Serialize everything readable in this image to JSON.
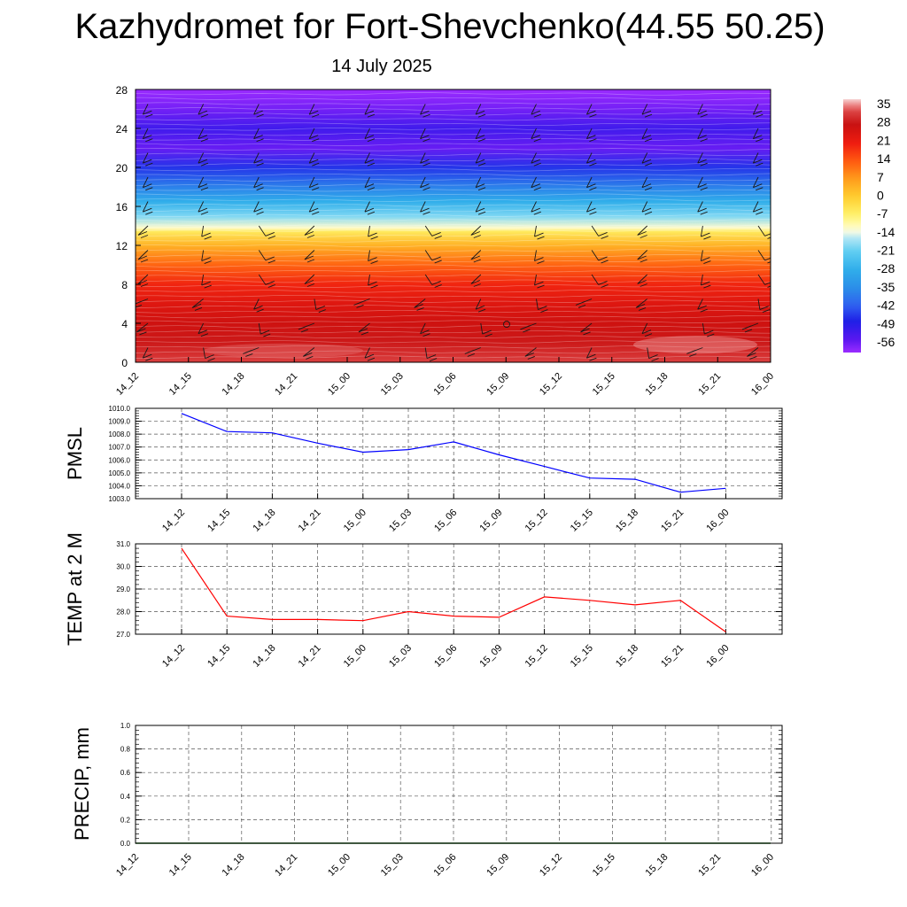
{
  "title": "Kazhydromet for Fort-Shevchenko(44.55 50.25)",
  "subtitle": "14 July 2025",
  "chart_data": [
    {
      "type": "heatmap",
      "name": "temperature-wind-profile",
      "x_ticks": [
        "14_12",
        "14_15",
        "14_18",
        "14_21",
        "15_00",
        "15_03",
        "15_06",
        "15_09",
        "15_12",
        "15_15",
        "15_18",
        "15_21",
        "16_00"
      ],
      "y_ticks": [
        0,
        4,
        8,
        12,
        16,
        20,
        24,
        28
      ],
      "ylim": [
        0,
        28
      ],
      "colorbar": {
        "labels": [
          35,
          28,
          21,
          14,
          7,
          0,
          -7,
          -14,
          -21,
          -28,
          -35,
          -42,
          -49,
          -56
        ],
        "range": [
          -60,
          38
        ]
      },
      "profile": [
        {
          "h": 0,
          "v": 33
        },
        {
          "h": 1,
          "v": 31
        },
        {
          "h": 2,
          "v": 29
        },
        {
          "h": 4,
          "v": 27
        },
        {
          "h": 6,
          "v": 24
        },
        {
          "h": 8,
          "v": 20
        },
        {
          "h": 10,
          "v": 13
        },
        {
          "h": 12,
          "v": 4
        },
        {
          "h": 13.4,
          "v": -5
        },
        {
          "h": 13.8,
          "v": -12
        },
        {
          "h": 15,
          "v": -19
        },
        {
          "h": 16.5,
          "v": -28
        },
        {
          "h": 18,
          "v": -37
        },
        {
          "h": 20,
          "v": -46
        },
        {
          "h": 22,
          "v": -56
        },
        {
          "h": 24,
          "v": -52
        },
        {
          "h": 26,
          "v": -57
        },
        {
          "h": 28,
          "v": -60
        }
      ],
      "grid": false
    },
    {
      "type": "line",
      "name": "pmsl",
      "ylabel": "PMSL",
      "x": [
        "14_12",
        "14_15",
        "14_18",
        "14_21",
        "15_00",
        "15_03",
        "15_06",
        "15_09",
        "15_12",
        "15_15",
        "15_18",
        "15_21",
        "16_00"
      ],
      "values": [
        1009.6,
        1008.2,
        1008.1,
        1007.3,
        1006.6,
        1006.8,
        1007.4,
        1006.4,
        1005.5,
        1004.6,
        1004.5,
        1003.5,
        1003.8
      ],
      "ylim": [
        1003.0,
        1010.0
      ],
      "y_ticks": [
        "1003.0",
        "1004.0",
        "1005.0",
        "1006.0",
        "1007.0",
        "1008.0",
        "1009.0",
        "1010.0"
      ],
      "color": "#0000ff",
      "grid": true
    },
    {
      "type": "line",
      "name": "temp-2m",
      "ylabel": "TEMP at 2 M",
      "x": [
        "14_12",
        "14_15",
        "14_18",
        "14_21",
        "15_00",
        "15_03",
        "15_06",
        "15_09",
        "15_12",
        "15_15",
        "15_18",
        "15_21",
        "16_00"
      ],
      "values": [
        30.8,
        27.8,
        27.65,
        27.65,
        27.6,
        28.0,
        27.8,
        27.75,
        28.65,
        28.5,
        28.3,
        28.5,
        27.1
      ],
      "ylim": [
        27.0,
        31.0
      ],
      "y_ticks": [
        "27.0",
        "28.0",
        "29.0",
        "30.0",
        "31.0"
      ],
      "color": "#ff0000",
      "grid": true
    },
    {
      "type": "line",
      "name": "precip",
      "ylabel": "PRECIP, mm",
      "x": [
        "14_12",
        "14_15",
        "14_18",
        "14_21",
        "15_00",
        "15_03",
        "15_06",
        "15_09",
        "15_12",
        "15_15",
        "15_18",
        "15_21",
        "16_00"
      ],
      "values": [
        0,
        0,
        0,
        0,
        0,
        0,
        0,
        0,
        0,
        0,
        0,
        0,
        0
      ],
      "ylim": [
        0.0,
        1.0
      ],
      "y_ticks": [
        "0.0",
        "0.2",
        "0.4",
        "0.6",
        "0.8",
        "1.0"
      ],
      "color": "#006400",
      "grid": true
    }
  ]
}
